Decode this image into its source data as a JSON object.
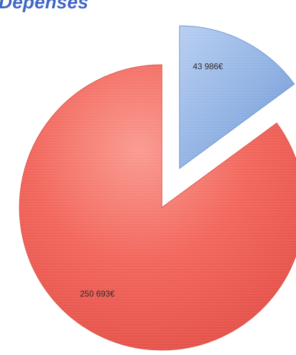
{
  "chart_data": {
    "type": "pie",
    "title": "Dépenses",
    "exploded": true,
    "style": "3d-shaded",
    "slices": [
      {
        "label": "43 986€",
        "value": 43986,
        "color": "#8fb1e3"
      },
      {
        "label": "250 693€",
        "value": 250693,
        "color": "#f26c63"
      }
    ]
  }
}
